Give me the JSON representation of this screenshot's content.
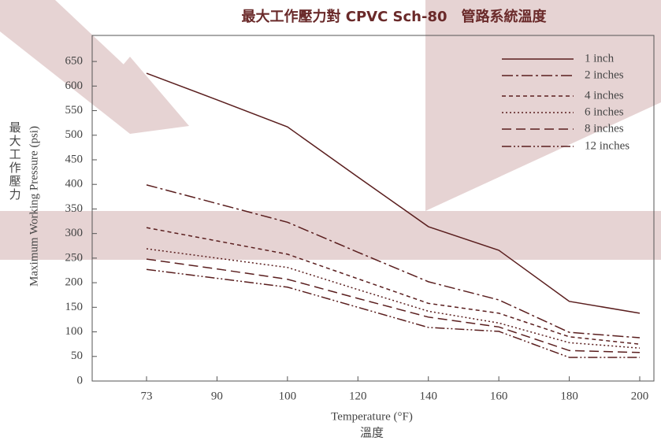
{
  "chart_data": {
    "type": "line",
    "title": "最大工作壓力對 CPVC Sch-80　管路系統溫度",
    "y_label": "Maximum Working Pressure (psi)",
    "y_label_zh": "最大工作壓力",
    "x_label": "Temperature (°F)",
    "x_label_zh": "溫度",
    "categories": [
      "73",
      "90",
      "100",
      "120",
      "140",
      "160",
      "180",
      "200"
    ],
    "ylim": [
      0,
      703
    ],
    "yticks": [
      0,
      50,
      100,
      150,
      200,
      250,
      300,
      350,
      400,
      450,
      500,
      550,
      600,
      650
    ],
    "legend": "top-right",
    "series": [
      {
        "name": "1 inch",
        "color": "#5a1e1e",
        "dash": "none",
        "values": [
          626,
          572,
          517,
          415,
          314,
          266,
          162,
          138
        ]
      },
      {
        "name": "2 inches",
        "color": "#5a1e1e",
        "dash": "14 4 3 4",
        "values": [
          399,
          361,
          323,
          262,
          202,
          165,
          99,
          88
        ]
      },
      {
        "name": "4 inches",
        "color": "#5a1e1e",
        "dash": "5 4",
        "values": [
          312,
          285,
          258,
          208,
          158,
          138,
          90,
          75
        ]
      },
      {
        "name": "6 inches",
        "color": "#5a1e1e",
        "dash": "2 3",
        "values": [
          269,
          250,
          231,
          186,
          142,
          118,
          78,
          67
        ]
      },
      {
        "name": "8 inches",
        "color": "#5a1e1e",
        "dash": "12 6",
        "values": [
          248,
          228,
          207,
          168,
          130,
          110,
          62,
          58
        ]
      },
      {
        "name": "12 inches",
        "color": "#5a1e1e",
        "dash": "12 3 2 3 2 3",
        "values": [
          227,
          209,
          191,
          150,
          109,
          101,
          48,
          48
        ]
      }
    ]
  }
}
